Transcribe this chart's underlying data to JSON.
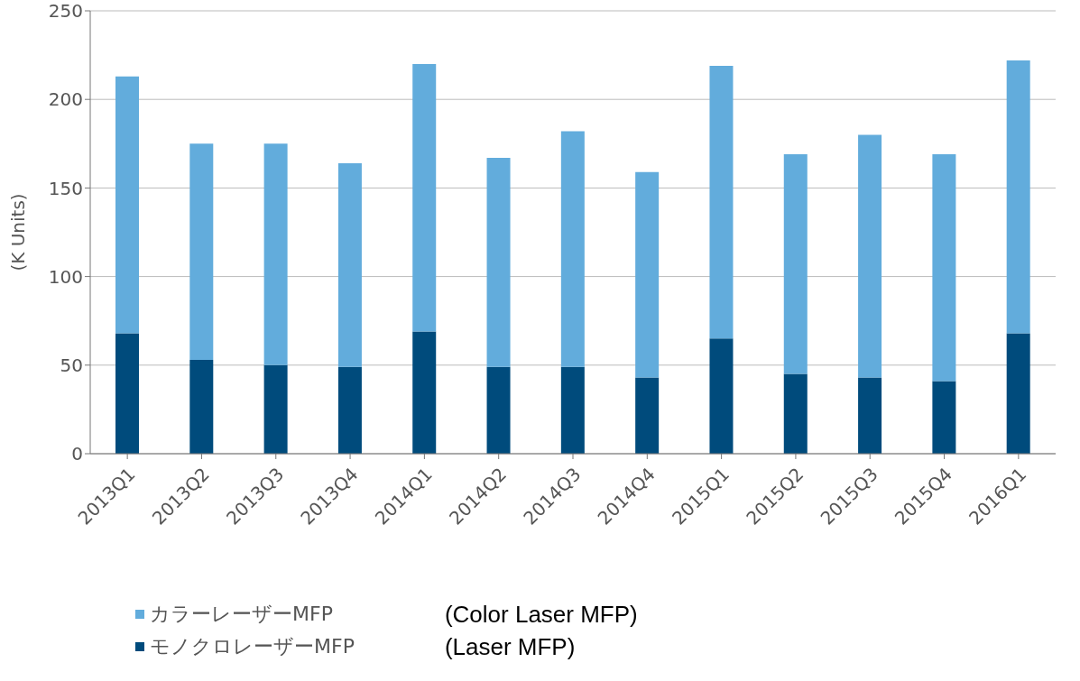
{
  "chart_data": {
    "type": "bar",
    "stacked": true,
    "ylabel": "(K Units)",
    "categories": [
      "2013Q1",
      "2013Q2",
      "2013Q3",
      "2013Q4",
      "2014Q1",
      "2014Q2",
      "2014Q3",
      "2014Q4",
      "2015Q1",
      "2015Q2",
      "2015Q3",
      "2015Q4",
      "2016Q1"
    ],
    "series": [
      {
        "name": "モノクロレーザーMFP",
        "color": "#004b7c",
        "values": [
          68,
          53,
          50,
          49,
          69,
          49,
          49,
          43,
          65,
          45,
          43,
          41,
          68
        ]
      },
      {
        "name": "カラーレーザーMFP",
        "color": "#62acdc",
        "values": [
          145,
          122,
          125,
          115,
          151,
          118,
          133,
          116,
          154,
          124,
          137,
          128,
          154
        ]
      }
    ],
    "ylim": [
      0,
      250
    ],
    "yticks": [
      0,
      50,
      100,
      150,
      200,
      250
    ],
    "grid": "y",
    "legend": "bottom left",
    "annotations": [
      "(Color Laser MFP)",
      "(Laser MFP)"
    ]
  }
}
